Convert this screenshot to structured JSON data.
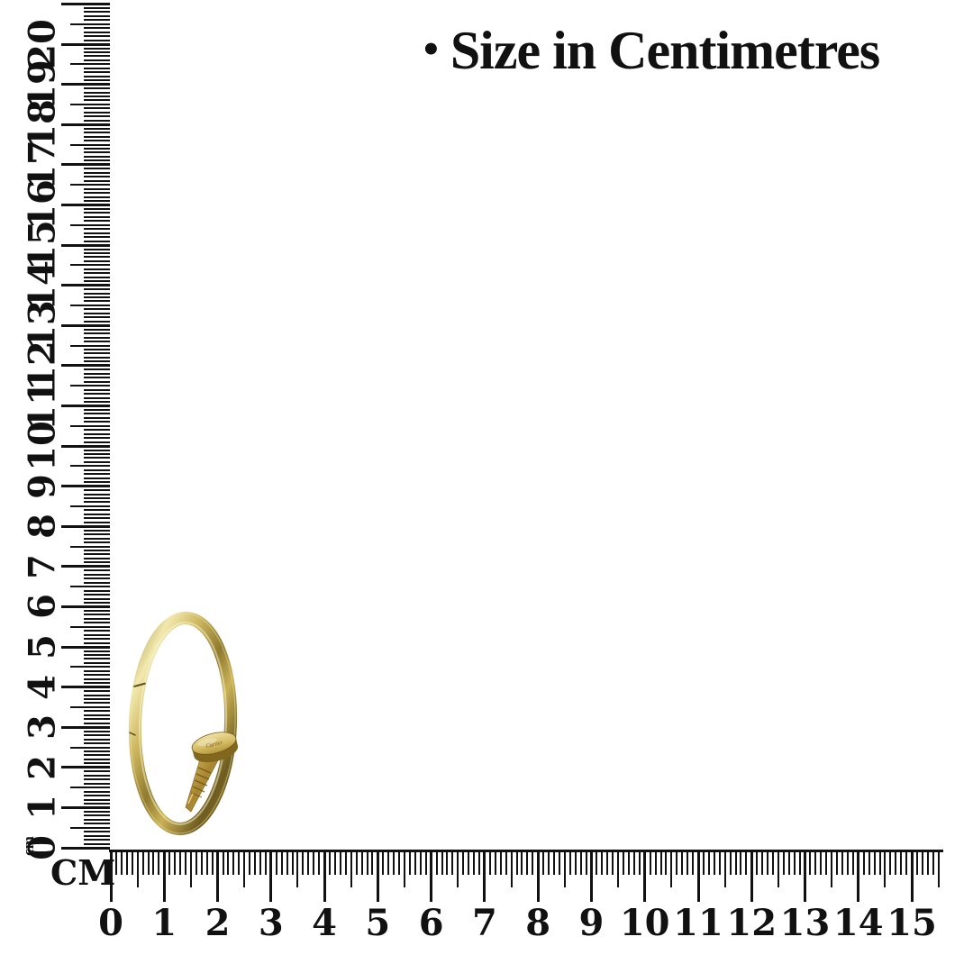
{
  "page": {
    "background": "#ffffff"
  },
  "title": {
    "bullet": "•",
    "text": "Size in Centimetres"
  },
  "rulers": {
    "horizontal": {
      "unit_label": "CM",
      "unit": "cm",
      "min_cm": 0,
      "max_cm": 15,
      "minor_ticks_per_cm": 10,
      "overflow_minor_ticks": 5,
      "tick_labels": [
        "0",
        "1",
        "2",
        "3",
        "4",
        "5",
        "6",
        "7",
        "8",
        "9",
        "10",
        "11",
        "12",
        "13",
        "14",
        "15"
      ]
    },
    "vertical": {
      "unit_label": "cm",
      "unit": "cm",
      "min_cm": 0,
      "max_cm": 20,
      "minor_ticks_per_cm": 10,
      "overflow_minor_ticks": 10,
      "tick_labels": [
        "0",
        "1",
        "2",
        "3",
        "4",
        "5",
        "6",
        "7",
        "8",
        "9",
        "10",
        "11",
        "12",
        "13",
        "14",
        "15",
        "16",
        "17",
        "18",
        "19",
        "20"
      ]
    }
  },
  "product": {
    "name": "gold nail bracelet",
    "engraving": "Cartier",
    "colors": {
      "gold_highlight": "#f5ecb8",
      "gold_light": "#e3d286",
      "gold_mid": "#c9ae53",
      "gold_dark": "#8a6d28",
      "gold_deep": "#5f4d1a"
    }
  },
  "tick_color": "#111111"
}
